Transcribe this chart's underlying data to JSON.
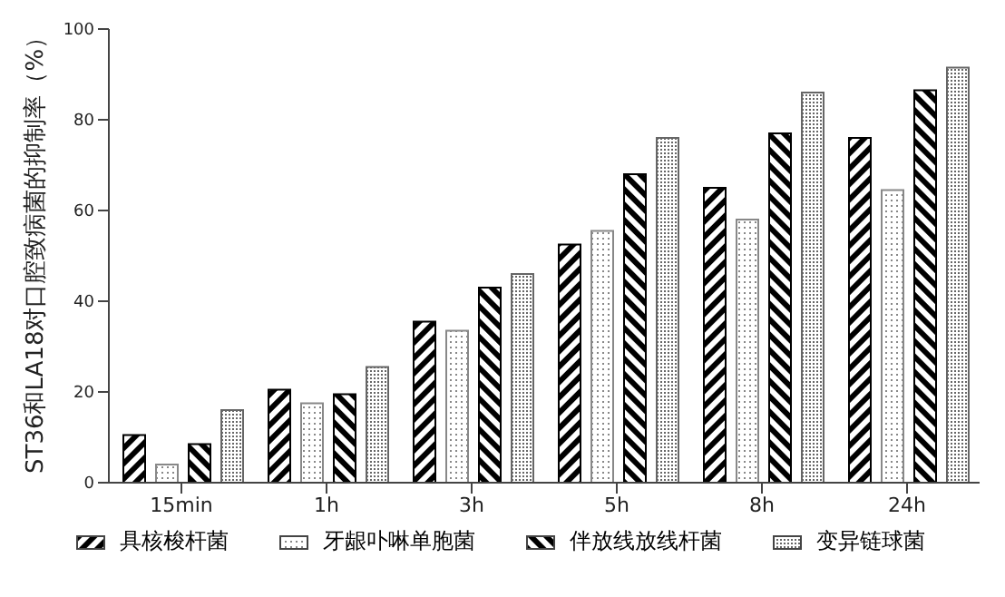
{
  "chart_data": {
    "type": "bar",
    "ylabel": "ST36和LA18对口腔致病菌的抑制率（%）",
    "categories": [
      "15min",
      "1h",
      "3h",
      "5h",
      "8h",
      "24h"
    ],
    "series": [
      {
        "name": "具核梭杆菌",
        "color": "#000000",
        "values": [
          10.5,
          20.5,
          35.5,
          52.5,
          65,
          76
        ]
      },
      {
        "name": "牙龈卟啉单胞菌",
        "color": "#888888",
        "values": [
          4,
          17.5,
          33.5,
          55.5,
          58,
          64.5
        ]
      },
      {
        "name": "伴放线放线杆菌",
        "color": "#000000",
        "values": [
          8.5,
          19.5,
          43,
          68,
          77,
          86.5
        ]
      },
      {
        "name": "变异链球菌",
        "color": "#666666",
        "values": [
          16,
          25.5,
          46,
          76,
          86,
          91.5
        ]
      }
    ],
    "ylim": [
      0,
      100
    ],
    "yticks": [
      0,
      20,
      40,
      60,
      80,
      100
    ],
    "grid": false,
    "legend": "bottom"
  }
}
